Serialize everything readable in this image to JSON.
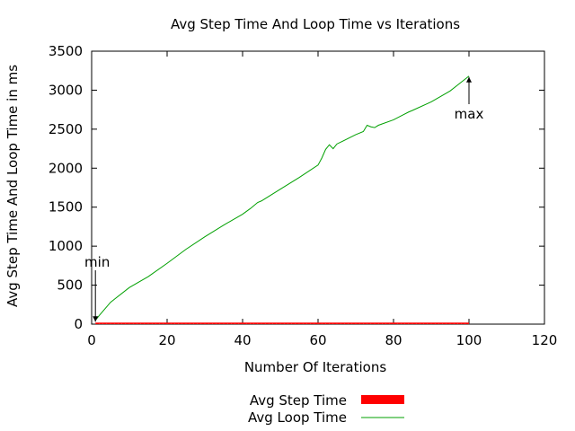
{
  "chart_data": {
    "type": "line",
    "title": "Avg Step Time And Loop Time vs Iterations",
    "xlabel": "Number Of Iterations",
    "ylabel": "Avg Step Time And Loop Time in ms",
    "xlim": [
      0,
      120
    ],
    "ylim": [
      0,
      3500
    ],
    "x_ticks": [
      0,
      20,
      40,
      60,
      80,
      100,
      120
    ],
    "y_ticks": [
      0,
      500,
      1000,
      1500,
      2000,
      2500,
      3000,
      3500
    ],
    "grid": false,
    "legend_position": "bottom-center",
    "series": [
      {
        "name": "Avg Step Time",
        "style": "bar",
        "color": "#ff0000",
        "x": [
          1,
          100
        ],
        "y": [
          20,
          20
        ]
      },
      {
        "name": "Avg Loop Time",
        "style": "line",
        "color": "#00a000",
        "x": [
          1,
          2,
          5,
          10,
          15,
          20,
          25,
          30,
          35,
          40,
          42,
          44,
          45,
          46,
          50,
          55,
          60,
          61,
          62,
          63,
          64,
          65,
          70,
          72,
          73,
          74,
          75,
          76,
          80,
          84,
          85,
          90,
          95,
          100
        ],
        "y": [
          50,
          110,
          280,
          470,
          610,
          780,
          960,
          1120,
          1270,
          1410,
          1480,
          1560,
          1580,
          1610,
          1730,
          1880,
          2040,
          2130,
          2240,
          2300,
          2250,
          2310,
          2430,
          2470,
          2550,
          2530,
          2520,
          2550,
          2620,
          2720,
          2740,
          2850,
          2990,
          3180
        ]
      }
    ],
    "annotations": [
      {
        "text": "min",
        "x": 1,
        "y": 20
      },
      {
        "text": "max",
        "x": 100,
        "y": 3180
      }
    ]
  }
}
